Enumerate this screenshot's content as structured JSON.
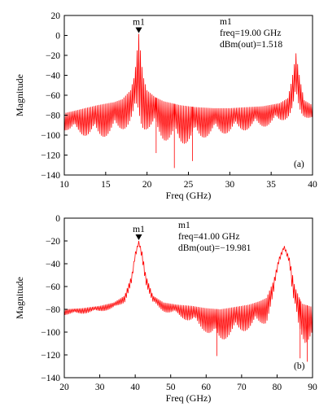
{
  "colors": {
    "trace": "#ff0000",
    "axis": "#000000",
    "background": "#ffffff"
  },
  "chart_data": [
    {
      "type": "line",
      "panel_label": "(a)",
      "xlabel": "Freq (GHz)",
      "ylabel": "Magnitude",
      "xlim": [
        10,
        40
      ],
      "ylim": [
        -140,
        20
      ],
      "xticks": [
        10,
        15,
        20,
        25,
        30,
        35,
        40
      ],
      "yticks": [
        20,
        0,
        -20,
        -40,
        -60,
        -80,
        -100,
        -120,
        -140
      ],
      "grid": false,
      "marker": {
        "name": "m1",
        "x": 19.0,
        "y": 1.518,
        "lines": [
          "m1",
          "freq=19.00 GHz",
          "dBm(out)=1.518"
        ]
      },
      "series": [
        {
          "peaks": [
            {
              "x": 19.0,
              "y": 1.5
            },
            {
              "x": 38.0,
              "y": -18.0
            }
          ],
          "envelope": [
            [
              10,
              -78
            ],
            [
              12,
              -74
            ],
            [
              14,
              -70
            ],
            [
              16,
              -67
            ],
            [
              17,
              -64
            ],
            [
              18,
              -55
            ],
            [
              18.5,
              -40
            ],
            [
              18.8,
              -15
            ],
            [
              19,
              1.5
            ],
            [
              19.2,
              -15
            ],
            [
              19.5,
              -40
            ],
            [
              20,
              -55
            ],
            [
              21,
              -62
            ],
            [
              22,
              -66
            ],
            [
              24,
              -70
            ],
            [
              26,
              -72
            ],
            [
              28,
              -73
            ],
            [
              30,
              -73
            ],
            [
              32,
              -72
            ],
            [
              34,
              -71
            ],
            [
              36,
              -68
            ],
            [
              37,
              -63
            ],
            [
              37.5,
              -45
            ],
            [
              38,
              -18
            ],
            [
              38.5,
              -45
            ],
            [
              39,
              -65
            ],
            [
              40,
              -70
            ]
          ],
          "floor": [
            [
              10,
              -95
            ],
            [
              12,
              -100
            ],
            [
              14,
              -103
            ],
            [
              16,
              -100
            ],
            [
              18,
              -90
            ],
            [
              20,
              -95
            ],
            [
              22,
              -105
            ],
            [
              24,
              -110
            ],
            [
              26,
              -105
            ],
            [
              28,
              -100
            ],
            [
              30,
              -98
            ],
            [
              32,
              -95
            ],
            [
              34,
              -92
            ],
            [
              36,
              -88
            ],
            [
              37.5,
              -80
            ],
            [
              38.5,
              -80
            ],
            [
              40,
              -85
            ]
          ],
          "notches": [
            {
              "x": 23.3,
              "y": -133
            },
            {
              "x": 25.5,
              "y": -126
            },
            {
              "x": 21.1,
              "y": -118
            }
          ]
        }
      ]
    },
    {
      "type": "line",
      "panel_label": "(b)",
      "xlabel": "Freq (GHz)",
      "ylabel": "Magnitude",
      "xlim": [
        20,
        90
      ],
      "ylim": [
        -140,
        0
      ],
      "xticks": [
        20,
        30,
        40,
        50,
        60,
        70,
        80,
        90
      ],
      "yticks": [
        0,
        -20,
        -40,
        -60,
        -80,
        -100,
        -120,
        -140
      ],
      "grid": false,
      "marker": {
        "name": "m1",
        "x": 41.0,
        "y": -19.981,
        "lines": [
          "m1",
          "freq=41.00 GHz",
          "dBm(out)=−19.981"
        ]
      },
      "series": [
        {
          "peaks": [
            {
              "x": 41.0,
              "y": -20.0
            },
            {
              "x": 82.0,
              "y": -24.0
            }
          ],
          "envelope": [
            [
              20,
              -80
            ],
            [
              25,
              -79
            ],
            [
              30,
              -77
            ],
            [
              34,
              -74
            ],
            [
              37,
              -68
            ],
            [
              39,
              -50
            ],
            [
              40,
              -30
            ],
            [
              41,
              -20
            ],
            [
              42,
              -30
            ],
            [
              43,
              -50
            ],
            [
              45,
              -68
            ],
            [
              48,
              -74
            ],
            [
              52,
              -76
            ],
            [
              56,
              -77
            ],
            [
              60,
              -79
            ],
            [
              64,
              -80
            ],
            [
              68,
              -78
            ],
            [
              72,
              -76
            ],
            [
              75,
              -73
            ],
            [
              77,
              -70
            ],
            [
              79,
              -55
            ],
            [
              80.5,
              -35
            ],
            [
              82,
              -24
            ],
            [
              83.5,
              -35
            ],
            [
              85,
              -60
            ],
            [
              87,
              -75
            ],
            [
              90,
              -78
            ]
          ],
          "floor": [
            [
              20,
              -85
            ],
            [
              25,
              -84
            ],
            [
              30,
              -82
            ],
            [
              34,
              -80
            ],
            [
              37,
              -74
            ],
            [
              39,
              -58
            ],
            [
              40,
              -38
            ],
            [
              41,
              -22
            ],
            [
              42,
              -38
            ],
            [
              43,
              -58
            ],
            [
              45,
              -76
            ],
            [
              48,
              -82
            ],
            [
              52,
              -86
            ],
            [
              56,
              -92
            ],
            [
              60,
              -100
            ],
            [
              63,
              -110
            ],
            [
              66,
              -105
            ],
            [
              70,
              -100
            ],
            [
              74,
              -96
            ],
            [
              77,
              -92
            ],
            [
              79,
              -70
            ],
            [
              80.5,
              -40
            ],
            [
              82,
              -26
            ],
            [
              83.5,
              -40
            ],
            [
              84.5,
              -75
            ],
            [
              86,
              -100
            ],
            [
              88,
              -110
            ],
            [
              90,
              -105
            ]
          ],
          "notches": [
            {
              "x": 63.0,
              "y": -121
            },
            {
              "x": 86.5,
              "y": -123
            },
            {
              "x": 88.5,
              "y": -126
            }
          ]
        }
      ]
    }
  ]
}
